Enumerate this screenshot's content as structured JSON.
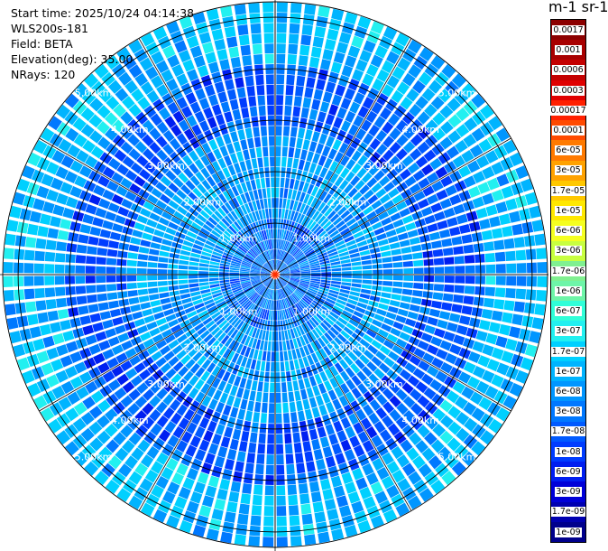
{
  "info": {
    "start_time": "Start time: 2025/10/24 04:14:38",
    "instrument": "WLS200s-181",
    "field": "Field: BETA",
    "elevation": "Elevation(deg): 35.00",
    "nrays": "NRays: 120"
  },
  "colorbar": {
    "unit_label": "m-1 sr-1",
    "labels": [
      "0.0017",
      "0.001",
      "0.0006",
      "0.0003",
      "0.00017",
      "0.0001",
      "6e-05",
      "3e-05",
      "1.7e-05",
      "1e-05",
      "6e-06",
      "3e-06",
      "1.7e-06",
      "1e-06",
      "6e-07",
      "3e-07",
      "1.7e-07",
      "1e-07",
      "6e-08",
      "3e-08",
      "1.7e-08",
      "1e-08",
      "6e-09",
      "3e-09",
      "1.7e-09",
      "1e-09"
    ],
    "colors": [
      "#8c0000",
      "#a80000",
      "#c40000",
      "#e00000",
      "#ff2000",
      "#ff4a00",
      "#ff7a00",
      "#ffa200",
      "#ffc800",
      "#ffe800",
      "#f5ff20",
      "#c8ff40",
      "#80f090",
      "#6ef5a8",
      "#30ffd8",
      "#22f0f0",
      "#00d0ff",
      "#00b4ff",
      "#0096ff",
      "#0078ff",
      "#005aff",
      "#003cff",
      "#001ef0",
      "#0000d8",
      "#0000b0",
      "#00008c"
    ]
  },
  "chart_data": {
    "type": "heatmap",
    "projection": "PPI (plan position indicator), polar",
    "field": "BETA",
    "elevation_deg": 35.0,
    "n_rays": 120,
    "max_range_km": 5.3,
    "range_rings_km": [
      1,
      2,
      3,
      4,
      5
    ],
    "ring_labels": [
      "1.00km",
      "2.00km",
      "3.00km",
      "4.00km",
      "5.00km"
    ],
    "spoke_angles_deg": [
      0,
      30,
      60,
      90,
      120,
      150,
      180,
      210,
      240,
      270,
      300,
      330
    ],
    "color_scale": "log",
    "value_range": [
      1e-09,
      0.0017
    ],
    "dominant_values_by_range": [
      {
        "range_km": [
          0.0,
          1.0
        ],
        "value": 3e-08
      },
      {
        "range_km": [
          1.0,
          3.0
        ],
        "value": 6e-08
      },
      {
        "range_km": [
          3.0,
          4.2
        ],
        "value": 1.7e-08
      },
      {
        "range_km": [
          4.2,
          5.3
        ],
        "value": 1e-07
      }
    ]
  }
}
